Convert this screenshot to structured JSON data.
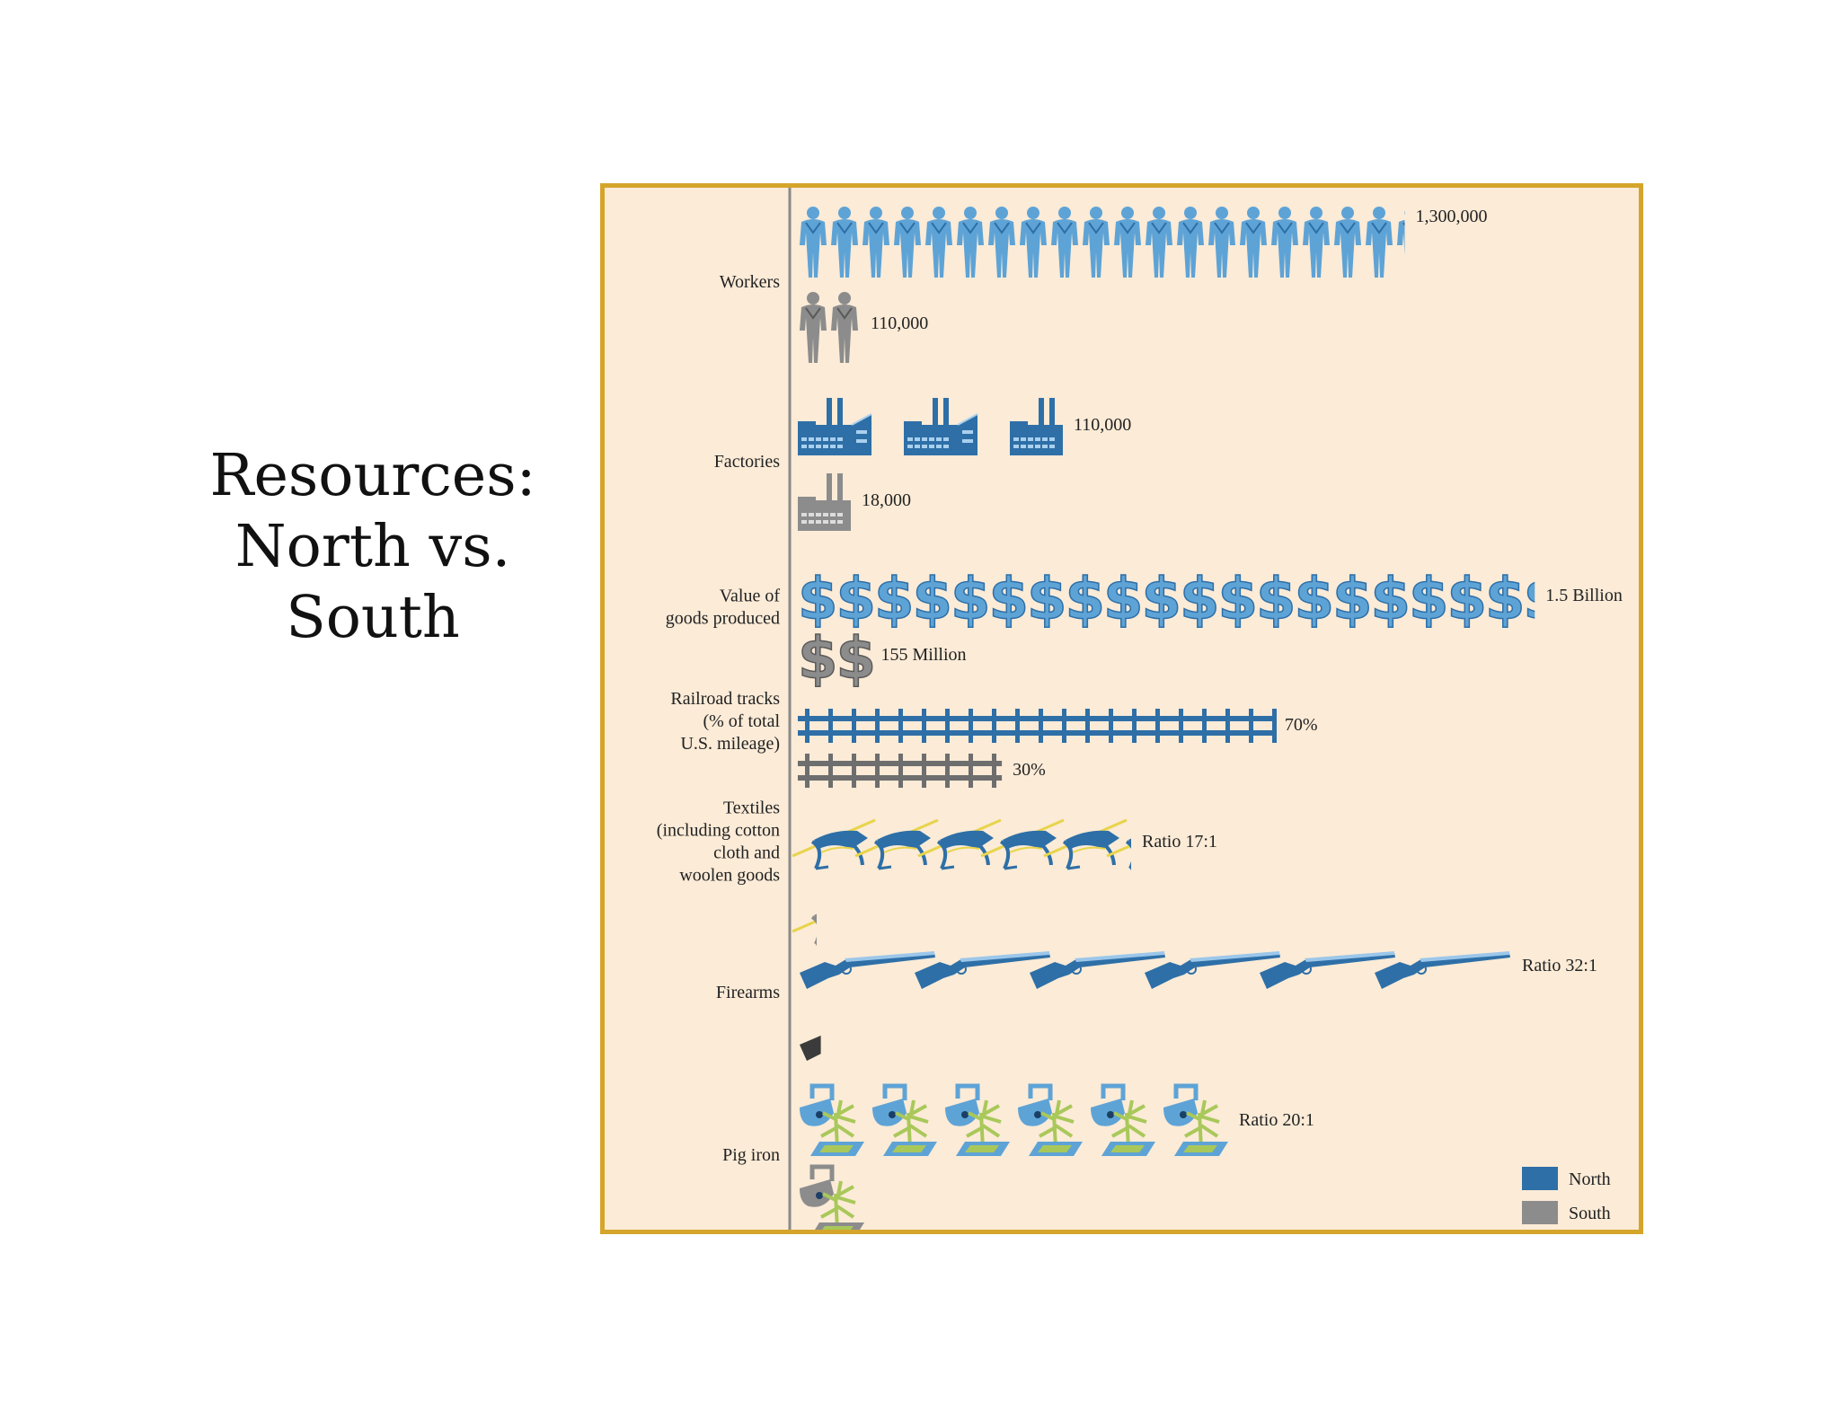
{
  "slide": {
    "title_lines": [
      "Resources:",
      "North vs.",
      "South"
    ]
  },
  "colors": {
    "north": "#2e6fa7",
    "north_light": "#5ea3d6",
    "south": "#8c8c8c",
    "accent_yellow": "#e8d44a",
    "tree": "#a9c85a",
    "frame": "#d4a52a",
    "panel": "#fbebd7"
  },
  "chart_data": {
    "type": "bar",
    "style": "pictograph",
    "legend": {
      "position": "bottom-right",
      "entries": [
        {
          "name": "North",
          "color": "#2e6fa7"
        },
        {
          "name": "South",
          "color": "#8c8c8c"
        }
      ]
    },
    "categories": [
      {
        "label_lines": [
          "Workers"
        ],
        "icon": "worker-icon",
        "north": {
          "units": 19.3,
          "label": "1,300,000",
          "value": 1300000
        },
        "south": {
          "units": 2,
          "label": "110,000",
          "value": 110000
        }
      },
      {
        "label_lines": [
          "Factories"
        ],
        "icon": "factory-icon",
        "north": {
          "units": 2.5,
          "label": "110,000",
          "value": 110000
        },
        "south": {
          "units": 0.5,
          "label": "18,000",
          "value": 18000
        }
      },
      {
        "label_lines": [
          "Value of",
          "goods produced"
        ],
        "icon": "dollar-icon",
        "north": {
          "units": 19.3,
          "label": "1.5 Billion",
          "value": 1500000000
        },
        "south": {
          "units": 2,
          "label": "155 Million",
          "value": 155000000
        }
      },
      {
        "label_lines": [
          "Railroad tracks",
          "(% of total",
          "U.S. mileage)"
        ],
        "icon": "railroad-track-icon",
        "north": {
          "units": 1,
          "label": "70%",
          "value": 70
        },
        "south": {
          "units": 1,
          "label": "30%",
          "value": 30
        }
      },
      {
        "label_lines": [
          "Textiles",
          "(including cotton",
          "cloth and",
          "woolen goods"
        ],
        "icon": "spinning-machine-icon",
        "north": {
          "units": 5.3,
          "label": "Ratio 17:1",
          "value": 17
        },
        "south": {
          "units": 0.3,
          "label": "",
          "value": 1
        }
      },
      {
        "label_lines": [
          "Firearms"
        ],
        "icon": "rifle-icon",
        "north": {
          "units": 6,
          "label": "Ratio 32:1",
          "value": 32
        },
        "south": {
          "units": 0.2,
          "label": "",
          "value": 1
        }
      },
      {
        "label_lines": [
          "Pig iron"
        ],
        "icon": "pig-iron-furnace-icon",
        "north": {
          "units": 6,
          "label": "Ratio 20:1",
          "value": 20
        },
        "south": {
          "units": 1,
          "label": "",
          "value": 1
        }
      }
    ]
  }
}
